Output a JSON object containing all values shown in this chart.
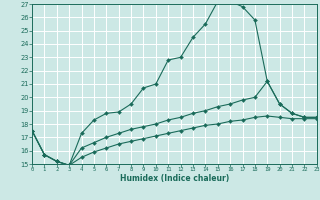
{
  "xlabel": "Humidex (Indice chaleur)",
  "background_color": "#cce8e5",
  "grid_color": "#ffffff",
  "line_color": "#1a6b5a",
  "xlim": [
    0,
    23
  ],
  "ylim": [
    15,
    27
  ],
  "yticks": [
    15,
    16,
    17,
    18,
    19,
    20,
    21,
    22,
    23,
    24,
    25,
    26,
    27
  ],
  "xticks": [
    0,
    1,
    2,
    3,
    4,
    5,
    6,
    7,
    8,
    9,
    10,
    11,
    12,
    13,
    14,
    15,
    16,
    17,
    18,
    19,
    20,
    21,
    22,
    23
  ],
  "c1_x": [
    0,
    1,
    2,
    3,
    4,
    5,
    6,
    7,
    8,
    9,
    10,
    11,
    12,
    13,
    14,
    15,
    16,
    17,
    18,
    19,
    20,
    21,
    22,
    23
  ],
  "c1_y": [
    17.5,
    15.7,
    15.2,
    14.9,
    17.3,
    18.3,
    18.8,
    18.9,
    19.5,
    20.7,
    21.0,
    22.8,
    23.0,
    24.5,
    25.5,
    27.2,
    27.2,
    26.8,
    25.8,
    21.2,
    19.5,
    18.8,
    18.5,
    18.5
  ],
  "c2_x": [
    0,
    1,
    2,
    3,
    4,
    5,
    6,
    7,
    8,
    9,
    10,
    11,
    12,
    13,
    14,
    15,
    16,
    17,
    18,
    19,
    20,
    21,
    22,
    23
  ],
  "c2_y": [
    17.5,
    15.7,
    15.2,
    14.9,
    16.2,
    16.6,
    17.0,
    17.3,
    17.6,
    17.8,
    18.0,
    18.3,
    18.5,
    18.8,
    19.0,
    19.3,
    19.5,
    19.8,
    20.0,
    21.2,
    19.5,
    18.8,
    18.5,
    18.5
  ],
  "c3_x": [
    0,
    1,
    2,
    3,
    4,
    5,
    6,
    7,
    8,
    9,
    10,
    11,
    12,
    13,
    14,
    15,
    16,
    17,
    18,
    19,
    20,
    21,
    22,
    23
  ],
  "c3_y": [
    17.5,
    15.7,
    15.2,
    14.9,
    15.5,
    15.9,
    16.2,
    16.5,
    16.7,
    16.9,
    17.1,
    17.3,
    17.5,
    17.7,
    17.9,
    18.0,
    18.2,
    18.3,
    18.5,
    18.6,
    18.5,
    18.4,
    18.4,
    18.4
  ]
}
